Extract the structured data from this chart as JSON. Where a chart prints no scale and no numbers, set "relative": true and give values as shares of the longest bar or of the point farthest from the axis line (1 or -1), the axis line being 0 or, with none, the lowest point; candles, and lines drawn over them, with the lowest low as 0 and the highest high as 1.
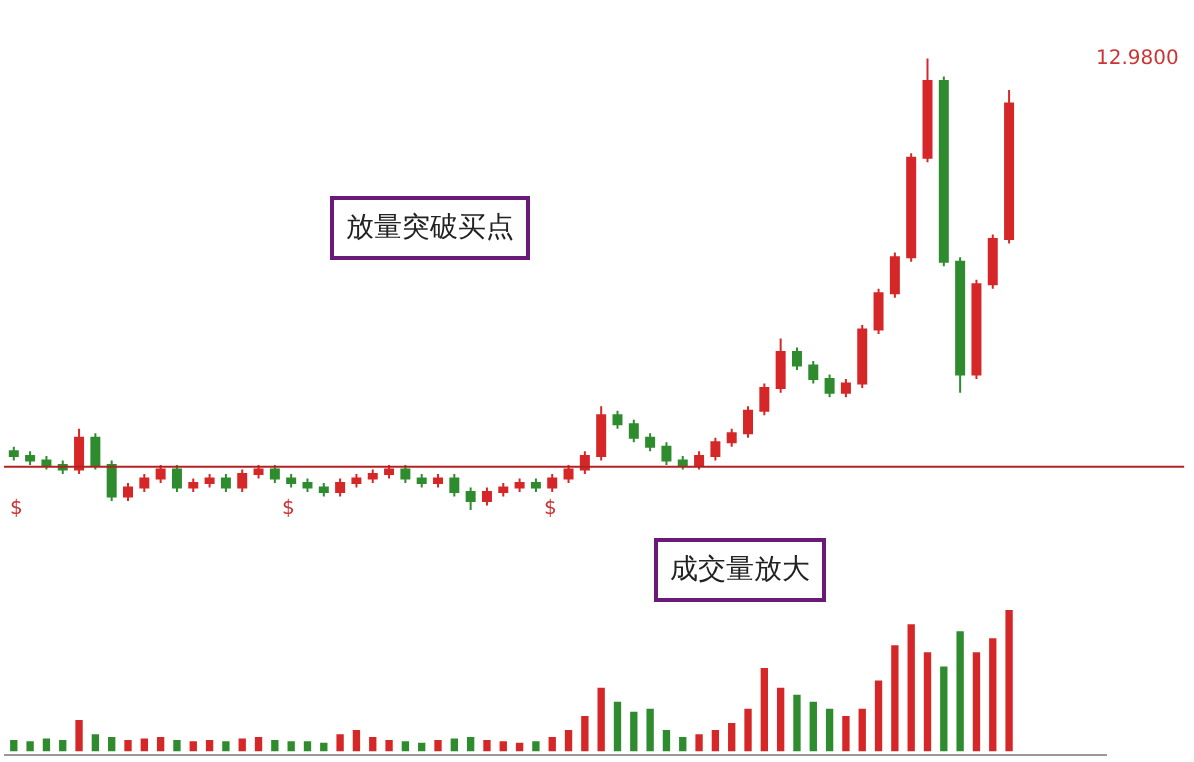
{
  "chart_data": [
    {
      "type": "candlestick",
      "relative": true,
      "tick_labels": false,
      "categories": [
        null,
        null,
        null,
        null,
        null,
        null,
        null,
        null,
        null,
        null,
        null,
        null,
        null,
        null,
        null,
        null,
        null,
        null,
        null,
        null,
        null,
        null,
        null,
        null,
        null,
        null,
        null,
        null,
        null,
        null,
        null,
        null,
        null,
        null,
        null,
        null,
        null,
        null,
        null,
        null,
        null,
        null,
        null,
        null,
        null,
        null,
        null,
        null,
        null,
        null,
        null,
        null,
        null,
        null,
        null,
        null,
        null,
        null,
        null,
        null,
        null,
        null
      ],
      "ohlc": [
        [
          0.13,
          0.14,
          0.11,
          0.12
        ],
        [
          0.12,
          0.13,
          0.1,
          0.11
        ],
        [
          0.11,
          0.12,
          0.09,
          0.1
        ],
        [
          0.1,
          0.11,
          0.08,
          0.09
        ],
        [
          0.09,
          0.18,
          0.08,
          0.16
        ],
        [
          0.16,
          0.17,
          0.09,
          0.1
        ],
        [
          0.1,
          0.11,
          0.02,
          0.03
        ],
        [
          0.03,
          0.06,
          0.02,
          0.05
        ],
        [
          0.05,
          0.08,
          0.04,
          0.07
        ],
        [
          0.07,
          0.1,
          0.06,
          0.09
        ],
        [
          0.09,
          0.1,
          0.04,
          0.05
        ],
        [
          0.05,
          0.07,
          0.04,
          0.06
        ],
        [
          0.06,
          0.08,
          0.05,
          0.07
        ],
        [
          0.07,
          0.08,
          0.04,
          0.05
        ],
        [
          0.05,
          0.09,
          0.04,
          0.08
        ],
        [
          0.08,
          0.1,
          0.07,
          0.09
        ],
        [
          0.09,
          0.1,
          0.06,
          0.07
        ],
        [
          0.07,
          0.08,
          0.05,
          0.06
        ],
        [
          0.06,
          0.07,
          0.04,
          0.05
        ],
        [
          0.05,
          0.06,
          0.03,
          0.04
        ],
        [
          0.04,
          0.07,
          0.03,
          0.06
        ],
        [
          0.06,
          0.08,
          0.05,
          0.07
        ],
        [
          0.07,
          0.09,
          0.06,
          0.08
        ],
        [
          0.08,
          0.1,
          0.07,
          0.09
        ],
        [
          0.09,
          0.1,
          0.06,
          0.07
        ],
        [
          0.07,
          0.08,
          0.05,
          0.06
        ],
        [
          0.06,
          0.08,
          0.05,
          0.07
        ],
        [
          0.07,
          0.08,
          0.03,
          0.04
        ],
        [
          0.04,
          0.05,
          0.0,
          0.02
        ],
        [
          0.02,
          0.05,
          0.01,
          0.04
        ],
        [
          0.04,
          0.06,
          0.03,
          0.05
        ],
        [
          0.05,
          0.07,
          0.04,
          0.06
        ],
        [
          0.06,
          0.07,
          0.04,
          0.05
        ],
        [
          0.05,
          0.08,
          0.04,
          0.07
        ],
        [
          0.07,
          0.1,
          0.06,
          0.09
        ],
        [
          0.09,
          0.13,
          0.08,
          0.12
        ],
        [
          0.12,
          0.23,
          0.11,
          0.21
        ],
        [
          0.21,
          0.22,
          0.18,
          0.19
        ],
        [
          0.19,
          0.2,
          0.15,
          0.16
        ],
        [
          0.16,
          0.17,
          0.13,
          0.14
        ],
        [
          0.14,
          0.15,
          0.1,
          0.11
        ],
        [
          0.11,
          0.12,
          0.09,
          0.1
        ],
        [
          0.1,
          0.13,
          0.09,
          0.12
        ],
        [
          0.12,
          0.16,
          0.11,
          0.15
        ],
        [
          0.15,
          0.18,
          0.14,
          0.17
        ],
        [
          0.17,
          0.23,
          0.16,
          0.22
        ],
        [
          0.22,
          0.28,
          0.21,
          0.27
        ],
        [
          0.27,
          0.38,
          0.26,
          0.35
        ],
        [
          0.35,
          0.36,
          0.31,
          0.32
        ],
        [
          0.32,
          0.33,
          0.28,
          0.29
        ],
        [
          0.29,
          0.3,
          0.25,
          0.26
        ],
        [
          0.26,
          0.29,
          0.25,
          0.28
        ],
        [
          0.28,
          0.41,
          0.27,
          0.4
        ],
        [
          0.4,
          0.49,
          0.39,
          0.48
        ],
        [
          0.48,
          0.57,
          0.47,
          0.56
        ],
        [
          0.56,
          0.79,
          0.55,
          0.78
        ],
        [
          0.78,
          1.0,
          0.77,
          0.95
        ],
        [
          0.95,
          0.96,
          0.54,
          0.55
        ],
        [
          0.55,
          0.56,
          0.26,
          0.3
        ],
        [
          0.3,
          0.51,
          0.29,
          0.5
        ],
        [
          0.5,
          0.61,
          0.49,
          0.6
        ],
        [
          0.6,
          0.93,
          0.59,
          0.9
        ]
      ],
      "colors": [
        "#2e8b2e",
        "#2e8b2e",
        "#2e8b2e",
        "#2e8b2e",
        "#d62728",
        "#2e8b2e",
        "#2e8b2e",
        "#d62728",
        "#d62728",
        "#d62728",
        "#2e8b2e",
        "#d62728",
        "#d62728",
        "#2e8b2e",
        "#d62728",
        "#d62728",
        "#2e8b2e",
        "#2e8b2e",
        "#2e8b2e",
        "#2e8b2e",
        "#d62728",
        "#d62728",
        "#d62728",
        "#d62728",
        "#2e8b2e",
        "#2e8b2e",
        "#d62728",
        "#2e8b2e",
        "#2e8b2e",
        "#d62728",
        "#d62728",
        "#d62728",
        "#2e8b2e",
        "#d62728",
        "#d62728",
        "#d62728",
        "#d62728",
        "#2e8b2e",
        "#2e8b2e",
        "#2e8b2e",
        "#2e8b2e",
        "#2e8b2e",
        "#d62728",
        "#d62728",
        "#d62728",
        "#d62728",
        "#d62728",
        "#d62728",
        "#2e8b2e",
        "#2e8b2e",
        "#2e8b2e",
        "#d62728",
        "#d62728",
        "#d62728",
        "#d62728",
        "#d62728",
        "#d62728",
        "#2e8b2e",
        "#2e8b2e",
        "#d62728",
        "#d62728",
        "#d62728"
      ],
      "ref_lines": [
        {
          "axis": "y",
          "value": 0.096,
          "color": "#b22222"
        }
      ],
      "annotations": [
        "放量突破买点",
        "12.9800",
        "$",
        "$",
        "$"
      ]
    },
    {
      "type": "bar",
      "relative": true,
      "tick_labels": false,
      "categories": [
        null,
        null,
        null,
        null,
        null,
        null,
        null,
        null,
        null,
        null,
        null,
        null,
        null,
        null,
        null,
        null,
        null,
        null,
        null,
        null,
        null,
        null,
        null,
        null,
        null,
        null,
        null,
        null,
        null,
        null,
        null,
        null,
        null,
        null,
        null,
        null,
        null,
        null,
        null,
        null,
        null,
        null,
        null,
        null,
        null,
        null,
        null,
        null,
        null,
        null,
        null,
        null,
        null,
        null,
        null,
        null,
        null,
        null,
        null,
        null,
        null,
        null
      ],
      "values": [
        0.08,
        0.07,
        0.09,
        0.08,
        0.22,
        0.12,
        0.1,
        0.08,
        0.09,
        0.1,
        0.08,
        0.07,
        0.08,
        0.07,
        0.09,
        0.1,
        0.08,
        0.07,
        0.07,
        0.06,
        0.12,
        0.15,
        0.1,
        0.08,
        0.07,
        0.06,
        0.08,
        0.09,
        0.1,
        0.08,
        0.07,
        0.06,
        0.07,
        0.1,
        0.15,
        0.25,
        0.45,
        0.35,
        0.28,
        0.3,
        0.15,
        0.1,
        0.12,
        0.15,
        0.2,
        0.3,
        0.59,
        0.45,
        0.4,
        0.35,
        0.3,
        0.25,
        0.3,
        0.5,
        0.75,
        0.9,
        0.7,
        0.6,
        0.85,
        0.7,
        0.8,
        1.0
      ],
      "colors": [
        "#2e8b2e",
        "#2e8b2e",
        "#2e8b2e",
        "#2e8b2e",
        "#d62728",
        "#2e8b2e",
        "#2e8b2e",
        "#d62728",
        "#d62728",
        "#d62728",
        "#2e8b2e",
        "#d62728",
        "#d62728",
        "#2e8b2e",
        "#d62728",
        "#d62728",
        "#2e8b2e",
        "#2e8b2e",
        "#2e8b2e",
        "#2e8b2e",
        "#d62728",
        "#d62728",
        "#d62728",
        "#d62728",
        "#2e8b2e",
        "#2e8b2e",
        "#d62728",
        "#2e8b2e",
        "#2e8b2e",
        "#d62728",
        "#d62728",
        "#d62728",
        "#2e8b2e",
        "#d62728",
        "#d62728",
        "#d62728",
        "#d62728",
        "#2e8b2e",
        "#2e8b2e",
        "#2e8b2e",
        "#2e8b2e",
        "#2e8b2e",
        "#d62728",
        "#d62728",
        "#d62728",
        "#d62728",
        "#d62728",
        "#d62728",
        "#2e8b2e",
        "#2e8b2e",
        "#2e8b2e",
        "#d62728",
        "#d62728",
        "#d62728",
        "#d62728",
        "#d62728",
        "#d62728",
        "#2e8b2e",
        "#2e8b2e",
        "#d62728",
        "#d62728",
        "#d62728"
      ],
      "annotations": [
        "成交量放大"
      ]
    }
  ]
}
